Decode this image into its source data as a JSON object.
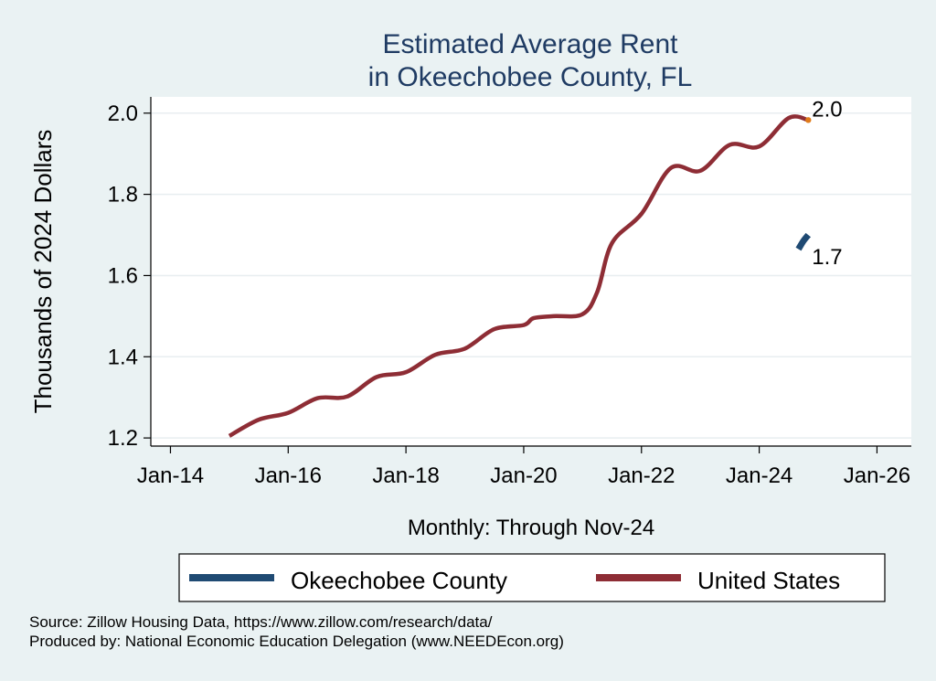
{
  "chart_data": {
    "type": "line",
    "title": [
      "Estimated Average Rent",
      "in Okeechobee County, FL"
    ],
    "xlabel": "Monthly: Through Nov-24",
    "ylabel": "Thousands of 2024 Dollars",
    "x_ticks": [
      "Jan-14",
      "Jan-16",
      "Jan-18",
      "Jan-20",
      "Jan-22",
      "Jan-24",
      "Jan-26"
    ],
    "x_tick_values": [
      "2014-01",
      "2016-01",
      "2018-01",
      "2020-01",
      "2022-01",
      "2024-01",
      "2026-01"
    ],
    "xlim": [
      "2013-09",
      "2026-08"
    ],
    "y_ticks": [
      "1.2",
      "1.4",
      "1.6",
      "1.8",
      "2.0"
    ],
    "y_tick_values": [
      1.2,
      1.4,
      1.6,
      1.8,
      2.0
    ],
    "ylim": [
      1.18,
      2.04
    ],
    "grid": true,
    "legend_position": "bottom",
    "series": [
      {
        "name": "Okeechobee County",
        "color": "#1f4a73",
        "end_label": "1.7",
        "points": [
          [
            "2024-09",
            1.665
          ],
          [
            "2024-10",
            1.685
          ],
          [
            "2024-11",
            1.7
          ]
        ]
      },
      {
        "name": "United States",
        "color": "#8e2d35",
        "end_label": "2.0",
        "end_marker_color": "#e07b1a",
        "points": [
          [
            "2015-01",
            1.205
          ],
          [
            "2015-07",
            1.245
          ],
          [
            "2016-01",
            1.262
          ],
          [
            "2016-07",
            1.298
          ],
          [
            "2017-01",
            1.302
          ],
          [
            "2017-07",
            1.35
          ],
          [
            "2018-01",
            1.362
          ],
          [
            "2018-07",
            1.405
          ],
          [
            "2019-01",
            1.42
          ],
          [
            "2019-07",
            1.468
          ],
          [
            "2020-01",
            1.478
          ],
          [
            "2020-03",
            1.495
          ],
          [
            "2020-07",
            1.5
          ],
          [
            "2021-01",
            1.505
          ],
          [
            "2021-04",
            1.56
          ],
          [
            "2021-07",
            1.68
          ],
          [
            "2022-01",
            1.752
          ],
          [
            "2022-07",
            1.865
          ],
          [
            "2023-01",
            1.858
          ],
          [
            "2023-07",
            1.922
          ],
          [
            "2024-01",
            1.918
          ],
          [
            "2024-07",
            1.988
          ],
          [
            "2024-11",
            1.983
          ]
        ]
      }
    ]
  },
  "source": {
    "line1": "Source: Zillow Housing Data, https://www.zillow.com/research/data/",
    "line2": "Produced by: National Economic Education Delegation (www.NEEDEcon.org)"
  }
}
